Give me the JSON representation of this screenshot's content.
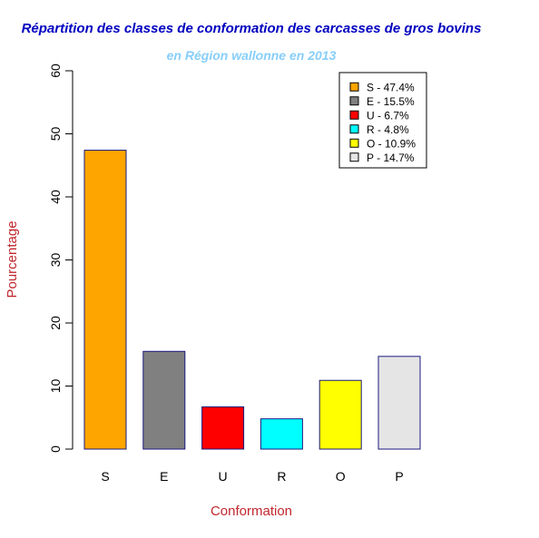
{
  "chart_data": {
    "type": "bar",
    "title": "Répartition des classes de conformation des carcasses de gros bovins",
    "subtitle": "en Région wallonne en 2013",
    "xlabel": "Conformation",
    "ylabel": "Pourcentage",
    "ylim": [
      0,
      60
    ],
    "yticks": [
      "0",
      "10",
      "20",
      "30",
      "40",
      "50",
      "60"
    ],
    "categories": [
      "S",
      "E",
      "U",
      "R",
      "O",
      "P"
    ],
    "values": [
      47.4,
      15.5,
      6.7,
      4.8,
      10.9,
      14.7
    ],
    "colors": [
      "#ffa500",
      "#808080",
      "#ff0000",
      "#00ffff",
      "#ffff00",
      "#e5e5e5"
    ],
    "bar_border_color": "#1a1a80",
    "title_color": "#0000c0",
    "subtitle_color": "#87cefa",
    "axis_label_color": "#c0272d",
    "grid": false,
    "legend_position": "top-right",
    "legend": [
      "S - 47.4%",
      "E - 15.5%",
      "U - 6.7%",
      "R - 4.8%",
      "O - 10.9%",
      "P - 14.7%"
    ]
  }
}
